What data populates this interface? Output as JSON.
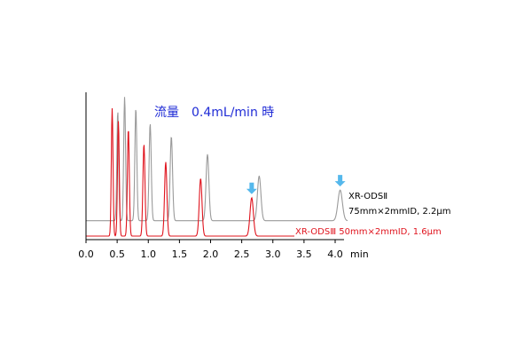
{
  "chart_data": {
    "type": "line",
    "title": "流量　0.4mL/min 時",
    "xlabel": "min",
    "xlim": [
      0.0,
      4.0
    ],
    "x_ticks": [
      "0.0",
      "0.5",
      "1.0",
      "1.5",
      "2.0",
      "2.5",
      "3.0",
      "3.5",
      "4.0"
    ],
    "colors": {
      "gray": "#9a9a9a",
      "red": "#e0141e",
      "arrow": "#55b8ec",
      "title": "#1f2bd6"
    },
    "series": [
      {
        "name_line1": "XR-ODSⅡ",
        "name_line2": "75mm×2mmID, 2.2μm",
        "color": "#9a9a9a",
        "baseline_offset": 0.12,
        "peaks": [
          {
            "rt": 0.51,
            "h": 0.86
          },
          {
            "rt": 0.62,
            "h": 0.97
          },
          {
            "rt": 0.8,
            "h": 0.88
          },
          {
            "rt": 1.03,
            "h": 0.76
          },
          {
            "rt": 1.37,
            "h": 0.66
          },
          {
            "rt": 1.95,
            "h": 0.52
          },
          {
            "rt": 2.78,
            "h": 0.35
          },
          {
            "rt": 4.08,
            "h": 0.24
          }
        ]
      },
      {
        "name": "XR-ODSⅢ 50mm×2mmID, 1.6μm",
        "color": "#e0141e",
        "baseline_offset": 0.0,
        "peaks": [
          {
            "rt": 0.42,
            "h": 1.0
          },
          {
            "rt": 0.52,
            "h": 0.9
          },
          {
            "rt": 0.68,
            "h": 0.84
          },
          {
            "rt": 0.93,
            "h": 0.72
          },
          {
            "rt": 1.28,
            "h": 0.58
          },
          {
            "rt": 1.84,
            "h": 0.45
          },
          {
            "rt": 2.66,
            "h": 0.3
          }
        ]
      }
    ],
    "arrows": [
      {
        "rt": 2.66,
        "series": "red"
      },
      {
        "rt": 4.08,
        "series": "gray"
      }
    ]
  }
}
